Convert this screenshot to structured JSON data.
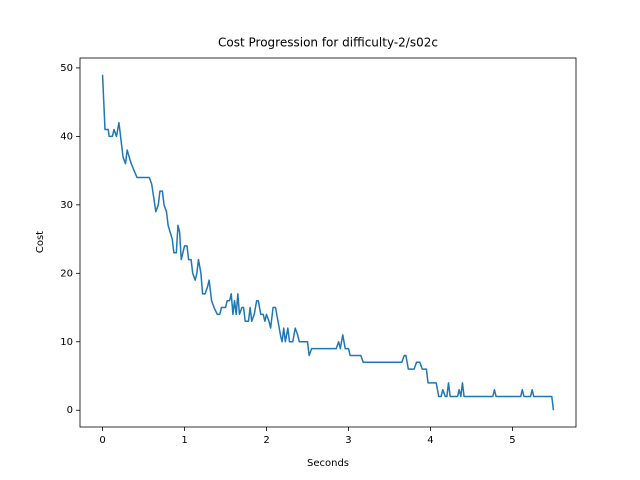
{
  "chart_data": {
    "type": "line",
    "title": "Cost Progression for difficulty-2/s02c",
    "x_label": "Seconds",
    "y_label": "Cost",
    "color": "#1f77b4",
    "x": [
      0,
      0.03,
      0.07,
      0.08,
      0.12,
      0.14,
      0.17,
      0.2,
      0.22,
      0.25,
      0.28,
      0.3,
      0.35,
      0.42,
      0.57,
      0.6,
      0.65,
      0.68,
      0.7,
      0.73,
      0.75,
      0.78,
      0.8,
      0.85,
      0.87,
      0.9,
      0.92,
      0.94,
      0.96,
      0.98,
      1.0,
      1.03,
      1.05,
      1.08,
      1.1,
      1.13,
      1.15,
      1.17,
      1.2,
      1.22,
      1.25,
      1.28,
      1.3,
      1.33,
      1.36,
      1.4,
      1.43,
      1.45,
      1.5,
      1.52,
      1.55,
      1.57,
      1.59,
      1.61,
      1.63,
      1.65,
      1.67,
      1.7,
      1.72,
      1.74,
      1.78,
      1.8,
      1.82,
      1.85,
      1.88,
      1.9,
      1.93,
      1.96,
      1.98,
      2.0,
      2.03,
      2.05,
      2.08,
      2.11,
      2.14,
      2.17,
      2.19,
      2.21,
      2.23,
      2.26,
      2.28,
      2.32,
      2.35,
      2.38,
      2.4,
      2.5,
      2.52,
      2.55,
      2.85,
      2.88,
      2.9,
      2.93,
      2.96,
      3.0,
      3.02,
      3.15,
      3.18,
      3.65,
      3.68,
      3.7,
      3.73,
      3.8,
      3.83,
      3.87,
      3.9,
      3.95,
      3.97,
      4.07,
      4.1,
      4.13,
      4.15,
      4.18,
      4.2,
      4.22,
      4.24,
      4.33,
      4.35,
      4.37,
      4.39,
      4.41,
      4.76,
      4.78,
      4.8,
      5.1,
      5.12,
      5.14,
      5.22,
      5.24,
      5.26,
      5.48,
      5.5
    ],
    "values": [
      49,
      41,
      41,
      40,
      40,
      41,
      40,
      42,
      40,
      37,
      36,
      38,
      36,
      34,
      34,
      33,
      29,
      30,
      32,
      32,
      30,
      29,
      27,
      25,
      23,
      23,
      27,
      26,
      22,
      23,
      24,
      24,
      22,
      22,
      20,
      19,
      20,
      22,
      20,
      17,
      17,
      18,
      19,
      16,
      15,
      14,
      14,
      15,
      15,
      16,
      16,
      17,
      14,
      16,
      14,
      17,
      14,
      15,
      15,
      13,
      13,
      15,
      13,
      14,
      16,
      16,
      14,
      14,
      13,
      14,
      13,
      12,
      15,
      15,
      13,
      11,
      10,
      12,
      10,
      12,
      10,
      10,
      12,
      11,
      10,
      10,
      8,
      9,
      9,
      10,
      9,
      11,
      9,
      9,
      8,
      8,
      7,
      7,
      8,
      8,
      6,
      6,
      7,
      7,
      6,
      6,
      4,
      4,
      2,
      2,
      3,
      2,
      2,
      4,
      2,
      2,
      3,
      2,
      4,
      2,
      2,
      3,
      2,
      2,
      3,
      2,
      2,
      3,
      2,
      2,
      0
    ],
    "xlim": [
      -0.275,
      5.775
    ],
    "ylim": [
      -2.45,
      51.45
    ],
    "xticks": [
      0,
      1,
      2,
      3,
      4,
      5
    ],
    "yticks": [
      0,
      10,
      20,
      30,
      40,
      50
    ]
  }
}
